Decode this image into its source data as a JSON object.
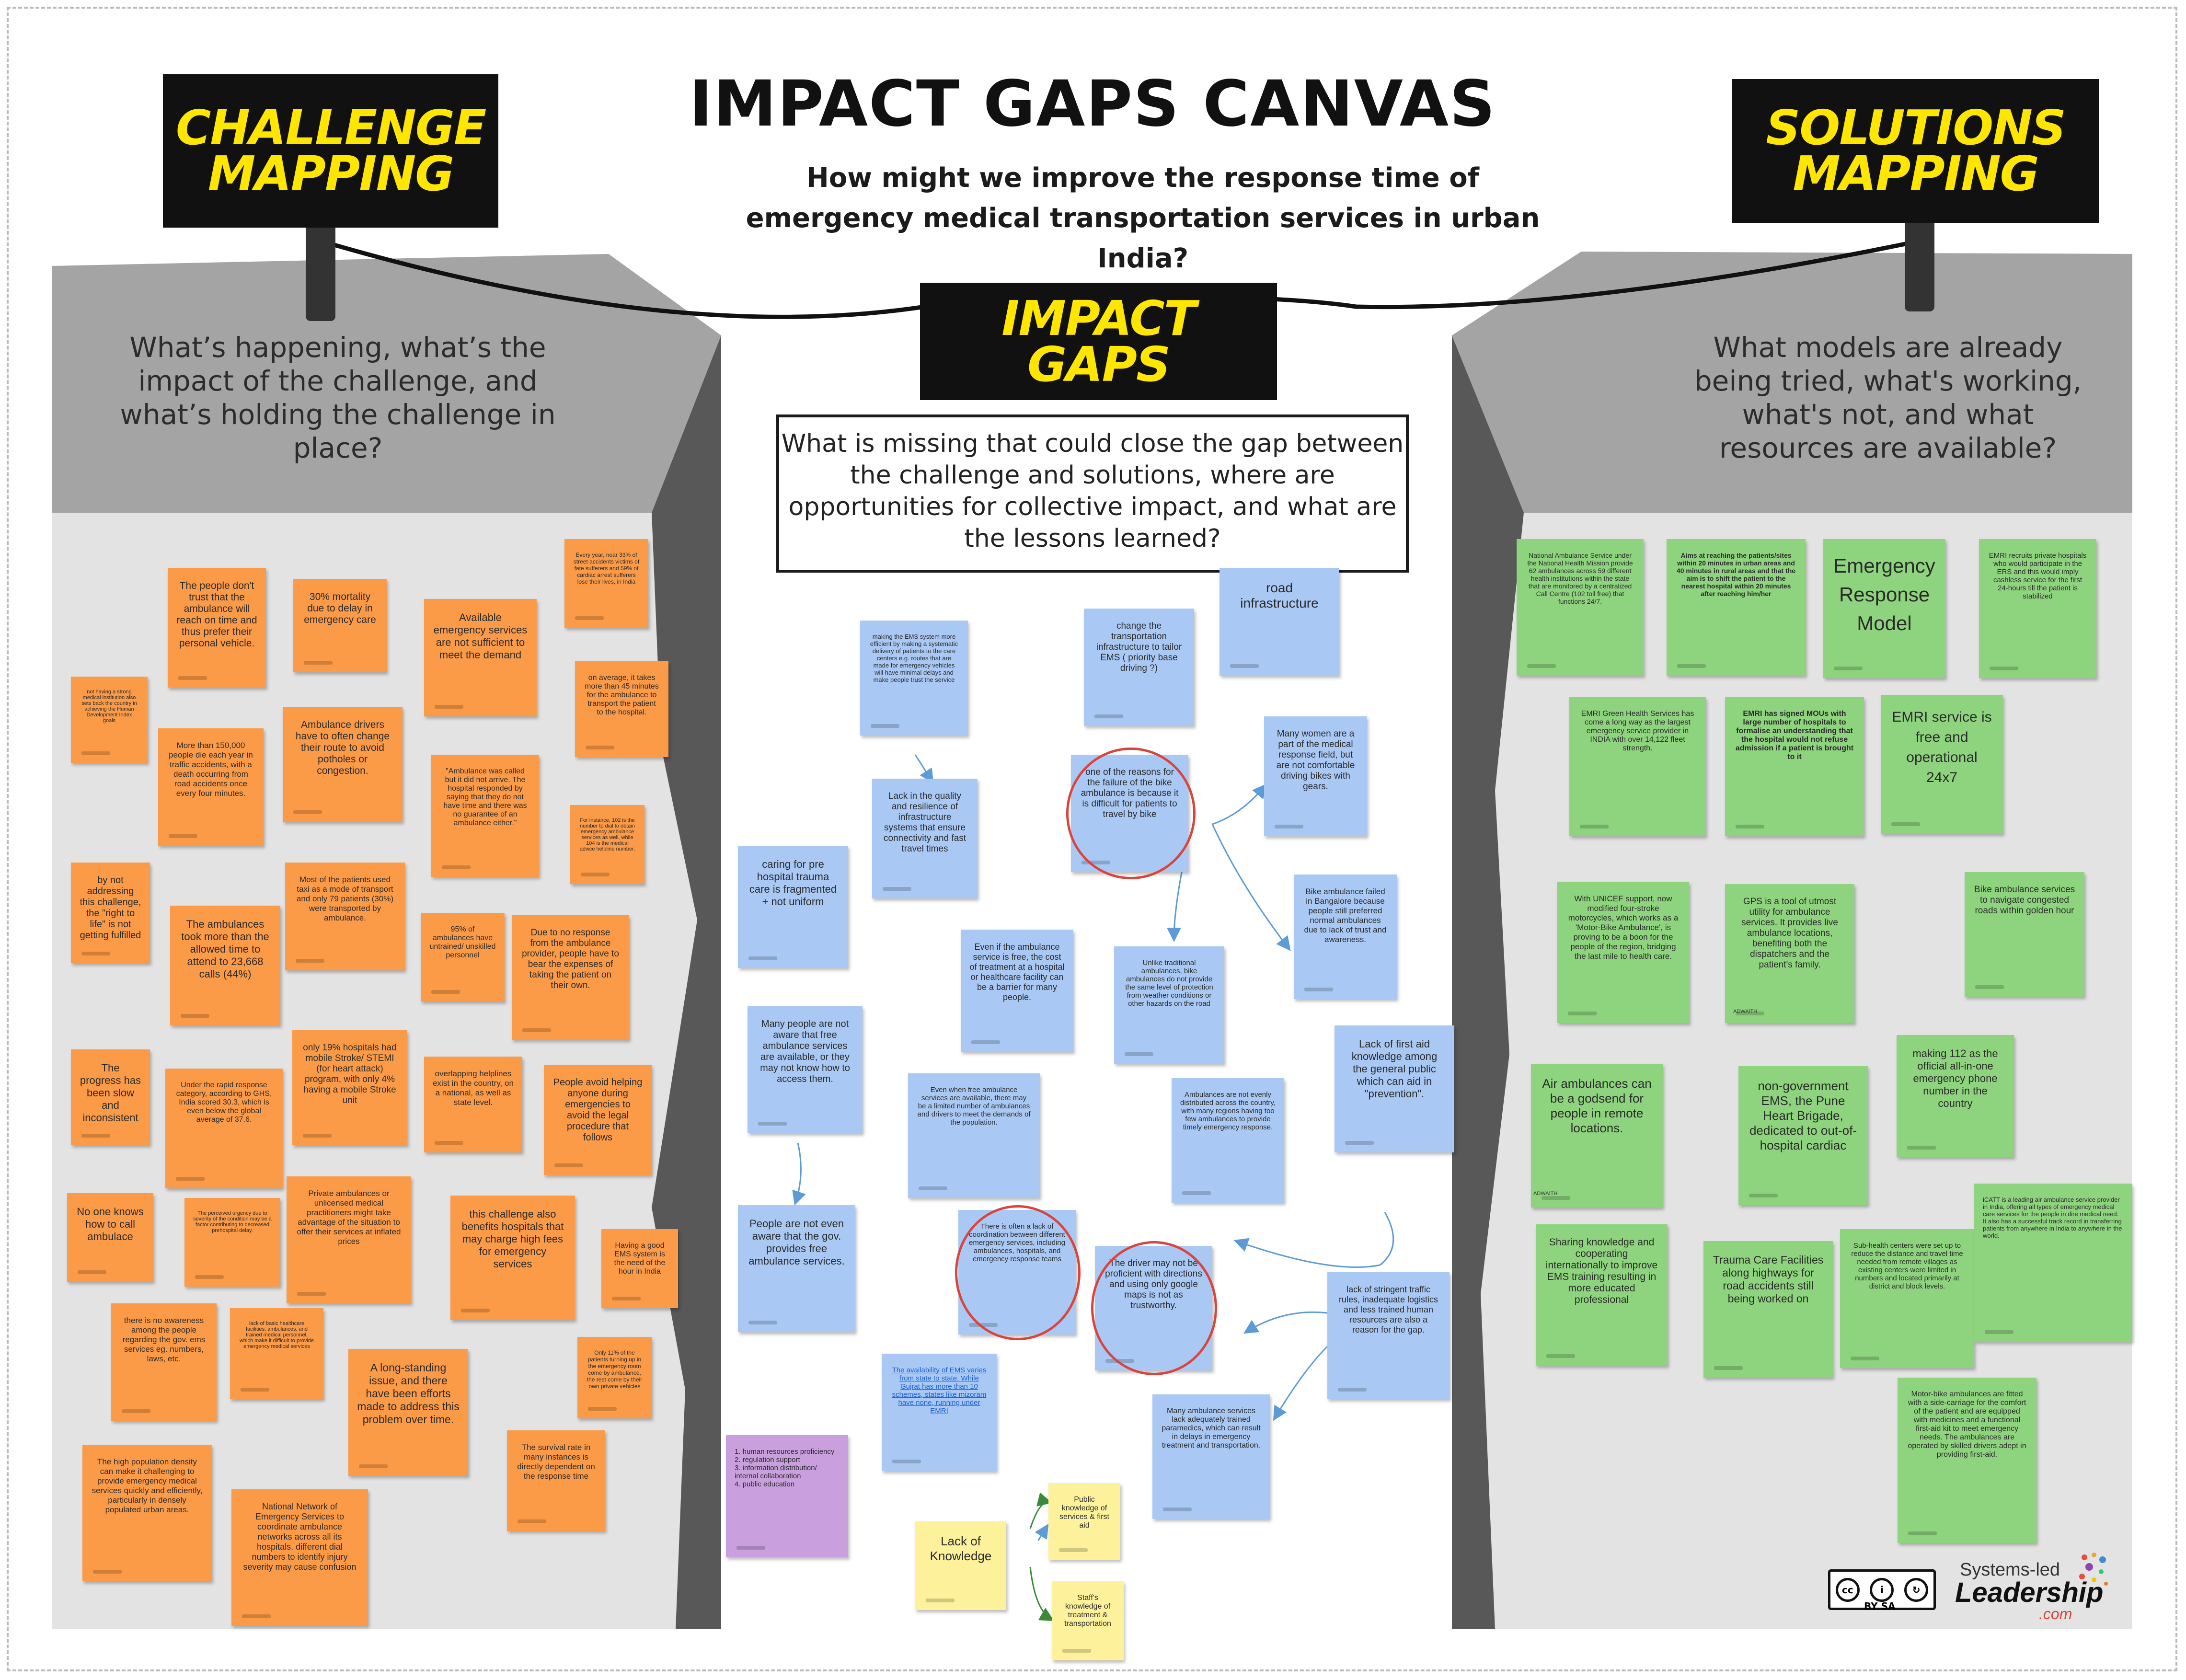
{
  "title": "IMPACT GAPS CANVAS",
  "main_question": "How might we improve the response time of emergency medical transportation services in urban India?",
  "signs": {
    "challenge": "CHALLENGE MAPPING",
    "impact": "IMPACT GAPS",
    "solutions": "SOLUTIONS MAPPING"
  },
  "questions": {
    "challenge": "What’s happening, what’s the impact of the challenge, and what’s holding the challenge in place?",
    "impact": "What is missing that could close the gap between the challenge and solutions, where are opportunities for collective impact, and what are the lessons learned?",
    "solutions": "What models are already being tried, what's working, what's not, and what resources are available?"
  },
  "challenge_notes": [
    "The people don't trust that the ambulance will reach on time and thus prefer their personal vehicle.",
    "30% mortality due to delay in emergency care",
    "Available emergency services are not sufficient to meet the demand",
    "Every year, near 33% of street accidents victims of fate sufferers and 59% of cardiac arrest sufferers lose their lives, in India",
    "not having a strong medical institution also sets back the country in achieving the Human Development Index goals",
    "More than 150,000 people die each year in traffic accidents, with a death occurring from road accidents once every four minutes.",
    "Ambulance drivers have to often change their route to avoid potholes or congestion.",
    "on average, it takes more than 45 minutes for the ambulance to transport the patient to the hospital.",
    "\"Ambulance was called but it did not arrive. The hospital responded by saying that they do not have time and there was no guarantee of an ambulance either.\"",
    "For instance, 102 is the number to dial to obtain emergency ambulance services as well, while 104 is the medical advice helpline number.",
    "by not addressing this challenge, the \"right to life\" is not getting fulfilled",
    "The ambulances took more than the allowed time to attend to 23,668 calls (44%)",
    "Most of the patients used taxi as a mode of transport and only 79 patients (30%) were transported by ambulance.",
    "95% of ambulances have untrained/ unskilled personnel",
    "Due to no response from the ambulance provider, people have to bear the expenses of taking the patient on their own.",
    "The progress has been slow and inconsistent",
    "Under the rapid response category, according to GHS, India scored 30.3, which is even below the global average of 37.6.",
    "only 19% hospitals had mobile Stroke/ STEMI (for heart attack) program, with only 4% having a mobile Stroke unit",
    "overlapping helplines exist in the country, on a national, as well as state level.",
    "People avoid helping anyone during emergencies to avoid the legal procedure that follows",
    "No one knows how to call ambulace",
    "The perceived urgency due to severity of the condition may be a factor contributing to decreased prehospital delay.",
    "Private ambulances or unlicensed medical practitioners might take advantage of the situation to offer their services at inflated prices",
    "this challenge also benefits hospitals that may charge high fees for emergency services",
    "Having a good EMS system is the need of the hour in India",
    "there is no awareness among the people regarding the gov. ems services eg. numbers, laws, etc.",
    "lack of basic healthcare facilities, ambulances, and trained medical personnel, which make it difficult to provide emergency medical services",
    "A long-standing issue, and there have been efforts made to address this problem over time.",
    "Only 11% of the patients turning up in the emergency room come by ambulance, the rest come by their own private vehicles",
    "The high population density can make it challenging to provide emergency medical services quickly and efficiently, particularly in densely populated urban areas.",
    "National Network of Emergency Services to coordinate ambulance networks across all its hospitals. different dial numbers to identify injury severity may cause confusion",
    "The survival rate in many instances is directly dependent on the response time"
  ],
  "impact_notes": [
    "making the EMS system more efficient by making a systematic delivery of patients to the care centers e.g. routes that are made for emergency vehicles will have minimal delays and make people trust the service",
    "change the transportation infrastructure to tailor EMS ( priority base driving ?)",
    "road infrastructure",
    "Lack in the quality and resilience of infrastructure systems that ensure connectivity and fast travel times",
    "one of the reasons for the failure of the bike ambulance is because it is difficult for patients to travel by bike",
    "Many women are a part of the medical response field, but are not comfortable driving bikes with gears.",
    "caring for pre hospital trauma care is fragmented + not uniform",
    "Even if the ambulance service is free, the cost of treatment at a hospital or healthcare facility can be a barrier for many people.",
    "Bike ambulance failed in Bangalore because people still preferred normal ambulances due to lack of trust and awareness.",
    "Unlike traditional ambulances, bike ambulances do not provide the same level of protection from weather conditions or other hazards on the road",
    "Many people are not aware that free ambulance services are available, or they may not know how to access them.",
    "Lack of first aid knowledge among the general public which can aid in \"prevention\".",
    "Even when free ambulance services are available, there may be a limited number of ambulances and drivers to meet the demands of the population.",
    "Ambulances are not evenly distributed across the country, with many regions having too few ambulances to provide timely emergency response.",
    "People are not even aware that the gov. provides free ambulance services.",
    "There is often a lack of coordination between different emergency services, including ambulances, hospitals, and emergency response teams",
    "The driver may not be proficient with directions and using only google maps is not as trustworthy.",
    "lack of stringent traffic rules, inadequate logistics and less trained human resources are also a reason for the gap.",
    "The availability of EMS varies from state to state. While Gujrat has more than 10 schemes, states like mizoram have none, running under EMRI",
    "Many ambulance services lack adequately trained paramedics, which can result in delays in emergency treatment and transportation.",
    "1. human resources proficiency\n2. regulation support\n3. information distribution/ internal collaboration\n4. public education",
    "Lack of Knowledge",
    "Public knowledge of services & first aid",
    "Staff's knowledge of treatment & transportation"
  ],
  "solution_notes": [
    "National Ambulance Service under the National Health Mission provide 62 ambulances across 59 different health institutions within the state that are monitored by a centralized Call Centre (102 toll free) that functions 24/7.",
    "Aims at reaching the patients/sites within 20 minutes in urban areas and 40 minutes in rural areas and that the aim is to shift the patient to the nearest hospital within 20 minutes after reaching him/her",
    "Emergency Response Model",
    "EMRI recruits private hospitals who would participate in the ERS and this would imply cashless service for the first 24-hours till the patient is stabilized",
    "EMRI Green Health Services has come a long way as the largest emergency service provider in INDIA with over 14,122 fleet strength.",
    "EMRI has signed MOUs with large number of hospitals to formalise an understanding that the hospital would not refuse admission if a patient is brought to it",
    "EMRI service is free and operational 24x7",
    "With UNICEF support, now modified four-stroke motorcycles, which works as a 'Motor-Bike Ambulance', is proving to be a boon for the people of the region, bridging the last mile to health care.",
    "GPS is a tool of utmost utility for ambulance services. It provides live ambulance locations, benefiting both the dispatchers and the patient's family.",
    "Bike ambulance services to navigate congested roads within golden hour",
    "making 112 as the official all-in-one emergency phone number in the country",
    "Air ambulances can be a godsend for people in remote locations.",
    "non-government EMS, the Pune Heart Brigade, dedicated to out-of-hospital cardiac",
    "Sharing knowledge and cooperating internationally to improve EMS training resulting in more educated professional",
    "Trauma Care Facilities along highways for road accidents still being worked on",
    "Sub-health centers were set up to reduce the distance and travel time needed from remote villages as existing centers were limited in numbers and located primarily at district and block levels.",
    "iCATT is a leading air ambulance service provider in India, offering all types of emergency medical care services for the people in dire medical need. It also has a successful track record in transferring patients from anywhere in India to anywhere in the world.",
    "Motor-bike ambulances are fitted with a side-carriage for the comfort of the patient and are equipped with medicines and a functional first-aid kit to meet emergency needs. The ambulances are operated by skilled drivers adept in providing first-aid."
  ],
  "author_tags": [
    "ADWAITH",
    "ADWAITH"
  ],
  "footer": {
    "license": "BY SA",
    "logo_top": "Systems-led",
    "logo_main": "Leadership",
    "logo_domain": ".com"
  },
  "colors": {
    "challenge_note": "#fc9b47",
    "impact_note": "#a9c9f4",
    "solution_note": "#8ed47e",
    "knowledge_note": "#fdf29b",
    "summary_note": "#c99fde",
    "sign_background": "#111111",
    "sign_text": "#ffe600",
    "circle_highlight": "#d9443d"
  }
}
